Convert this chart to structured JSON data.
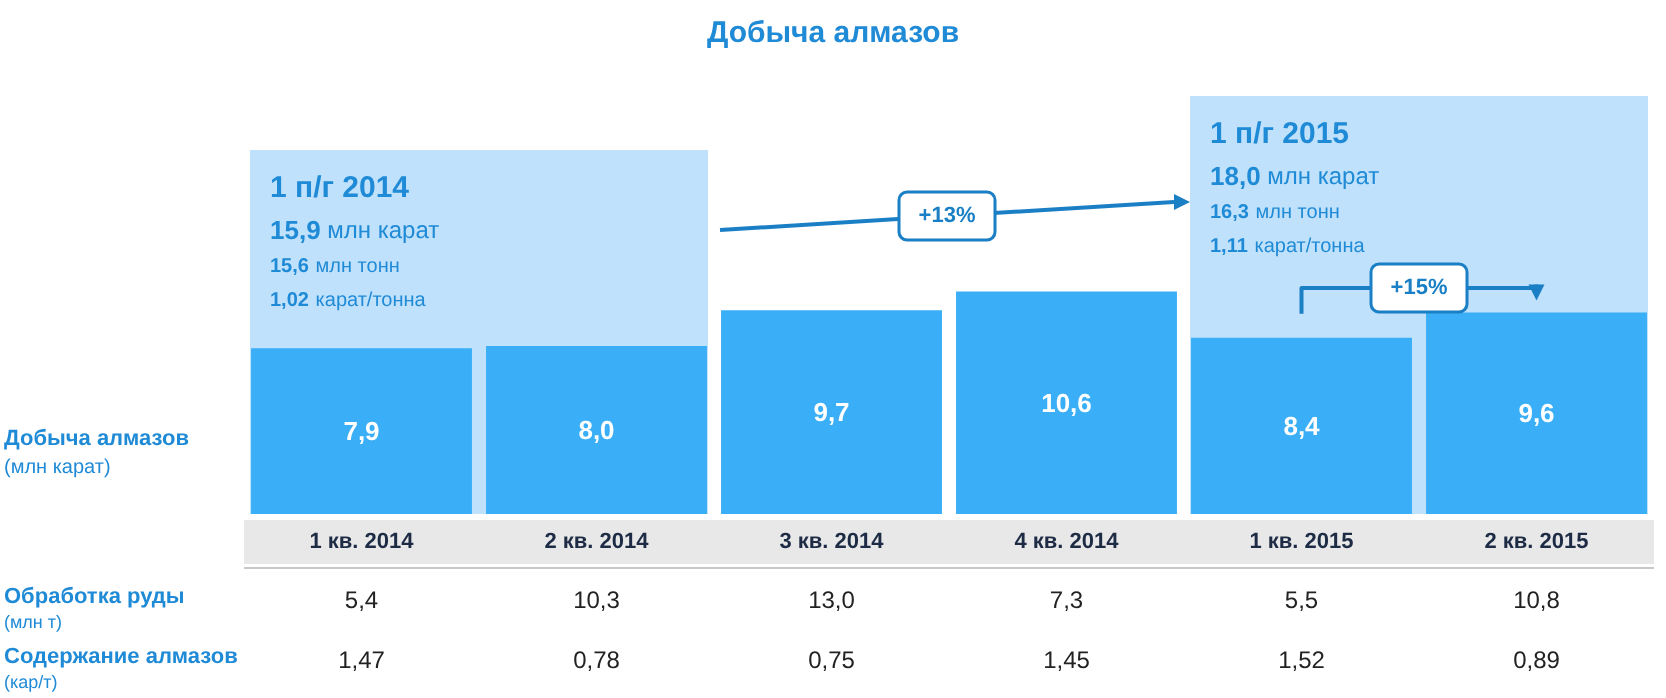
{
  "chart_data": {
    "type": "bar",
    "title": "Добыча алмазов",
    "ylabel": "Добыча алмазов (млн карат)",
    "categories": [
      "1 кв. 2014",
      "2 кв. 2014",
      "3 кв. 2014",
      "4 кв. 2014",
      "1 кв. 2015",
      "2 кв. 2015"
    ],
    "values": [
      7.9,
      8.0,
      9.7,
      10.6,
      8.4,
      9.6
    ],
    "color": "#3aaef7",
    "value_labels": [
      "7,9",
      "8,0",
      "9,7",
      "10,6",
      "8,4",
      "9,6"
    ],
    "bands": [
      {
        "axis": "x",
        "from": "1 кв. 2014",
        "to": "2 кв. 2014",
        "label": "1 п/г 2014\n15,9 млн карат\n15,6 млн тонн\n1,02 карат/тонна",
        "color": "#bfe1fb"
      },
      {
        "axis": "x",
        "from": "1 кв. 2015",
        "to": "2 кв. 2015",
        "label": "1 п/г 2015\n18,0 млн карат\n16,3 млн тонн\n1,11 карат/тонна",
        "color": "#bfe1fb"
      }
    ],
    "annotations": [
      "+13%",
      "+15%",
      "Обработка руды (млн т)",
      "5,4",
      "10,3",
      "13,0",
      "7,3",
      "5,5",
      "10,8",
      "Содержание алмазов (кар/т)",
      "1,47",
      "0,78",
      "0,75",
      "1,45",
      "1,52",
      "0,89"
    ]
  }
}
